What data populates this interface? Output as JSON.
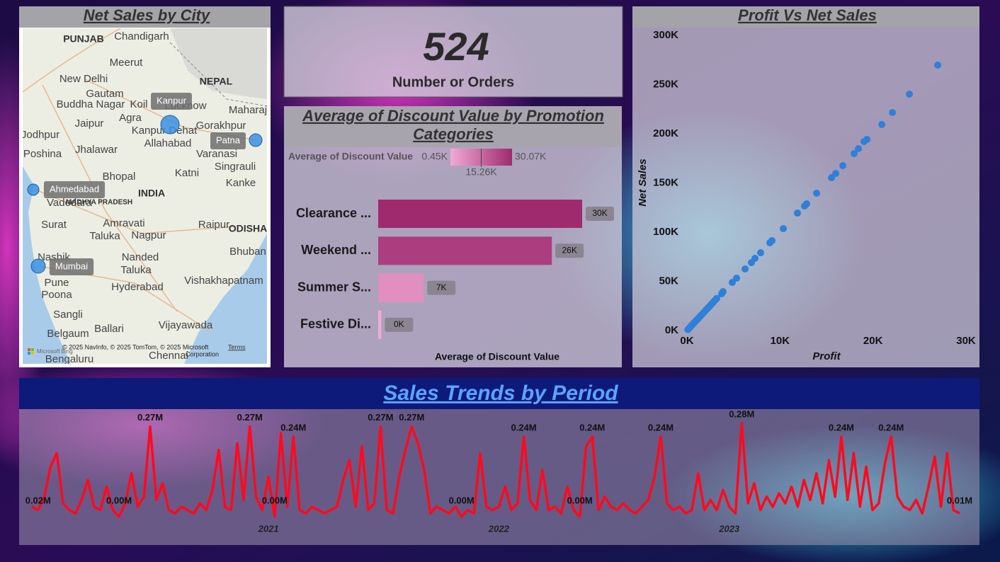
{
  "map": {
    "title": "Net Sales by City",
    "cities": [
      "Kanpur",
      "Patna",
      "Ahmedabad",
      "Mumbai"
    ],
    "places": [
      "Chandigarh",
      "PUNJAB",
      "Meerut",
      "New Delhi",
      "Gautam",
      "Buddha Nagar",
      "Koil",
      "Lucknow",
      "NEPAL",
      "Maharaj",
      "Agra",
      "Jaipur",
      "Gorakhpur",
      "Kanpur Dehat",
      "Jodhpur",
      "Allahabad",
      "Varanasi",
      "Poshina",
      "Jhalawar",
      "Singrauli",
      "Bhopal",
      "Katni",
      "Kanke",
      "INDIA",
      "MADHYA PRADESH",
      "Vadodara",
      "Surat",
      "Amravati",
      "Taluka",
      "Nagpur",
      "Raipur",
      "ODISHA",
      "Bhuban",
      "Nashik",
      "Nanded",
      "Taluka",
      "Pune",
      "Hyderabad",
      "Vishakhapatnam",
      "Poona",
      "Sangli",
      "Vijayawada",
      "Belgaum",
      "Ballari",
      "Bengaluru",
      "Chennai"
    ],
    "attribution": "© 2025 NavInfo, © 2025 TomTom, © 2025 Microsoft",
    "attribution_2": "Corporation",
    "terms": "Terms",
    "brand": "Microsoft Bing"
  },
  "kpi": {
    "value": 524,
    "label": "Number or Orders"
  },
  "chart_data": [
    {
      "type": "bar",
      "orientation": "horizontal",
      "title": "Average of Discount Value by Promotion Categories",
      "title_lines": [
        "Average of Discount Value by Promotion",
        "Categories"
      ],
      "categories": [
        "Clearance ...",
        "Weekend ...",
        "Summer S...",
        "Festive Di..."
      ],
      "values": [
        30070,
        25600,
        6700,
        450
      ],
      "value_labels": [
        "30K",
        "26K",
        "7K",
        "0K"
      ],
      "xlabel": "Average of Discount Value",
      "color_scale": {
        "title": "Average of Discount Value",
        "min": {
          "value": 450,
          "label": "0.45K"
        },
        "mid": {
          "value": 15260,
          "label": "15.26K"
        },
        "max": {
          "value": 30070,
          "label": "30.07K"
        },
        "colors": [
          "#f2a9d6",
          "#a02a6e"
        ]
      }
    },
    {
      "type": "scatter",
      "title": "Profit Vs Net Sales",
      "xlabel": "Profit",
      "ylabel": "Net Sales",
      "color": "#2f80d8",
      "x": [
        26960,
        23910,
        22090,
        20950,
        19350,
        19040,
        18430,
        17970,
        16760,
        16000,
        15540,
        13940,
        12870,
        12640,
        11880,
        10360,
        9140,
        8910,
        7920,
        7310,
        6930,
        6250,
        5330,
        4870,
        3880,
        3730,
        100,
        250,
        400,
        550,
        700,
        850,
        1000,
        1200,
        1400,
        1600,
        1800,
        2000,
        2200,
        2400,
        2600,
        2800,
        3000,
        3200
      ],
      "values": [
        269800,
        240300,
        221600,
        209400,
        194200,
        192100,
        184900,
        179900,
        167600,
        159700,
        155400,
        139600,
        128800,
        126600,
        119400,
        103600,
        91400,
        89200,
        79100,
        73400,
        69100,
        62600,
        53200,
        48900,
        39600,
        37400,
        1000,
        2500,
        4100,
        5600,
        7100,
        8600,
        10200,
        12200,
        14200,
        16300,
        18300,
        20400,
        22400,
        24400,
        26500,
        28500,
        30600,
        32600
      ],
      "xlim": [
        0,
        30000
      ],
      "ylim": [
        0,
        300000
      ],
      "xticks": [
        {
          "value": 0,
          "label": "0K"
        },
        {
          "value": 10000,
          "label": "10K"
        },
        {
          "value": 20000,
          "label": "20K"
        },
        {
          "value": 30000,
          "label": "30K"
        }
      ],
      "yticks": [
        {
          "value": 0,
          "label": "0K"
        },
        {
          "value": 50000,
          "label": "50K"
        },
        {
          "value": 100000,
          "label": "100K"
        },
        {
          "value": 150000,
          "label": "150K"
        },
        {
          "value": 200000,
          "label": "200K"
        },
        {
          "value": 250000,
          "label": "250K"
        },
        {
          "value": 300000,
          "label": "300K"
        }
      ]
    },
    {
      "type": "line",
      "title": "Sales Trends by Period",
      "color": "#ff0a1e",
      "categories": [
        null,
        null,
        null,
        null,
        null,
        null,
        null,
        null,
        null,
        null,
        null,
        null,
        null,
        null,
        null,
        null,
        null,
        null,
        null,
        null,
        null,
        null,
        null,
        null,
        null,
        null,
        null,
        null,
        null,
        null,
        null,
        null,
        null,
        null,
        null,
        null,
        null,
        null,
        "2021",
        null,
        null,
        null,
        null,
        null,
        null,
        null,
        null,
        null,
        null,
        null,
        null,
        null,
        null,
        null,
        null,
        null,
        null,
        null,
        null,
        null,
        null,
        null,
        null,
        null,
        null,
        null,
        null,
        null,
        null,
        null,
        null,
        null,
        null,
        null,
        null,
        "2022",
        null,
        null,
        null,
        null,
        null,
        null,
        null,
        null,
        null,
        null,
        null,
        null,
        null,
        null,
        null,
        null,
        null,
        null,
        null,
        null,
        null,
        null,
        null,
        null,
        null,
        null,
        null,
        null,
        null,
        null,
        null,
        null,
        null,
        null,
        null,
        null,
        "2023",
        null,
        null,
        null,
        null,
        null,
        null,
        null,
        null,
        null,
        null,
        null,
        null,
        null,
        null,
        null,
        null,
        null,
        null,
        null,
        null,
        null,
        null,
        null,
        null,
        null,
        null,
        null,
        null,
        null,
        null,
        null,
        null,
        null,
        null,
        null,
        null,
        null
      ],
      "values": [
        0.03,
        0.02,
        0.06,
        0.15,
        0.19,
        0.04,
        0.02,
        0.01,
        0.05,
        0.11,
        0.03,
        0.02,
        0.09,
        0.02,
        0.0,
        0.04,
        0.13,
        0.03,
        0.06,
        0.27,
        0.05,
        0.1,
        0.02,
        0.01,
        0.03,
        0.02,
        0.01,
        0.04,
        0.02,
        0.08,
        0.2,
        0.03,
        0.02,
        0.22,
        0.05,
        0.27,
        0.06,
        0.02,
        0.12,
        0.0,
        0.25,
        0.03,
        0.24,
        0.02,
        0.01,
        0.03,
        0.02,
        0.01,
        0.02,
        0.03,
        0.11,
        0.17,
        0.03,
        0.21,
        0.02,
        0.04,
        0.27,
        0.02,
        0.01,
        0.12,
        0.2,
        0.27,
        0.22,
        0.14,
        0.01,
        0.03,
        0.02,
        0.01,
        0.03,
        0.0,
        0.02,
        0.01,
        0.19,
        0.03,
        0.02,
        0.03,
        0.09,
        0.02,
        0.04,
        0.24,
        0.05,
        0.02,
        0.14,
        0.02,
        0.03,
        0.01,
        0.09,
        0.02,
        0.0,
        0.21,
        0.24,
        0.02,
        0.06,
        0.03,
        0.02,
        0.04,
        0.02,
        0.01,
        0.03,
        0.05,
        0.12,
        0.24,
        0.04,
        0.02,
        0.03,
        0.01,
        0.02,
        0.13,
        0.02,
        0.05,
        0.02,
        0.08,
        0.03,
        0.01,
        0.28,
        0.04,
        0.1,
        0.02,
        0.06,
        0.03,
        0.07,
        0.04,
        0.09,
        0.03,
        0.11,
        0.05,
        0.13,
        0.04,
        0.17,
        0.06,
        0.24,
        0.05,
        0.19,
        0.03,
        0.15,
        0.02,
        0.04,
        0.16,
        0.24,
        0.06,
        0.03,
        0.02,
        0.05,
        0.01,
        0.09,
        0.18,
        0.03,
        0.19,
        0.02,
        0.01
      ],
      "value_labels": [
        null,
        "0.02M",
        null,
        null,
        null,
        null,
        null,
        null,
        null,
        null,
        null,
        null,
        null,
        null,
        "0.00M",
        null,
        null,
        null,
        null,
        "0.27M",
        null,
        null,
        null,
        null,
        null,
        null,
        null,
        null,
        null,
        null,
        null,
        null,
        null,
        null,
        null,
        "0.27M",
        null,
        null,
        null,
        "0.00M",
        null,
        null,
        "0.24M",
        null,
        null,
        null,
        null,
        null,
        null,
        null,
        null,
        null,
        null,
        null,
        null,
        null,
        "0.27M",
        null,
        null,
        null,
        null,
        "0.27M",
        null,
        null,
        null,
        null,
        null,
        null,
        null,
        "0.00M",
        null,
        null,
        null,
        null,
        null,
        null,
        null,
        null,
        null,
        "0.24M",
        null,
        null,
        null,
        null,
        null,
        null,
        null,
        null,
        "0.00M",
        null,
        "0.24M",
        null,
        null,
        null,
        null,
        null,
        null,
        null,
        null,
        null,
        null,
        "0.24M",
        null,
        null,
        null,
        null,
        null,
        null,
        null,
        null,
        null,
        null,
        null,
        null,
        "0.28M",
        null,
        null,
        null,
        null,
        null,
        null,
        null,
        null,
        null,
        null,
        null,
        null,
        null,
        null,
        null,
        "0.24M",
        null,
        null,
        null,
        null,
        null,
        null,
        null,
        "0.24M",
        null,
        null,
        null,
        null,
        null,
        null,
        null,
        null,
        null,
        null,
        "0.01M"
      ]
    }
  ]
}
